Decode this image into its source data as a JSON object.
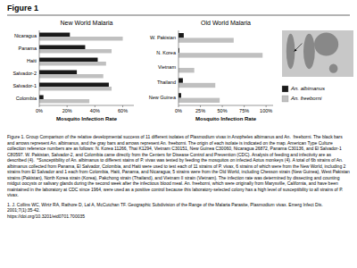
{
  "chart_data": [
    {
      "type": "bar",
      "orientation": "horizontal",
      "title": "New World Malaria",
      "x_label": "Mosquito Infection Rate",
      "categories": [
        "Nicaragua",
        "Panama",
        "Haiti",
        "Salvador-2",
        "Salvador-1",
        "Colombia"
      ],
      "series": [
        {
          "name": "An. albimanus",
          "color": "#1a1a1a",
          "values": [
            22,
            33,
            42,
            27,
            50,
            3
          ]
        },
        {
          "name": "An. freeborni",
          "color": "#c0c0c0",
          "values": [
            60,
            52,
            48,
            46,
            52,
            36
          ]
        }
      ],
      "xlim": [
        0,
        68
      ],
      "xticks": [
        {
          "value": 0,
          "label": "0%"
        },
        {
          "value": 20,
          "label": "20%"
        },
        {
          "value": 40,
          "label": "40%"
        },
        {
          "value": 60,
          "label": "60%"
        }
      ],
      "legend": "right",
      "annotations": [
        "Figure 1",
        "Figure 1. Group Comparison of the relative developmental success of 11 different isolates of Plasmodium vivax in Anopheles albimanus and An.  freeborni. The black bars and arrows represent An. albimanus, and the gray bars and arrows represent An. freeborni. The origin of each isolate is indicated on the map. American Type Culture collection reference numbers are as follows: N. Korea 11266, Thai K1294, Vietnam C30151, New Guinea C30060, Nicaragua 26872, Panama C30136, and El Salvador-1 C80597. W. Pakistan, Salvador-2, and Colombia came directly from the Centers for Disease Control and Prevention (CDC). Analysis of feeding and infectivity are as described (4).  *Susceptibility of An. albimanus to different stains of P. vivax was tested by feeding the mosquitos on infected Aotus monkeys (4). A total of 6b strains of An. albimanus collected from Panama, El Salvador, Colombia, and Haiti were used to test each of 11 strains of P. vivax, 6 strains of which were from the New World, including 2 strains from El Salvador and 1 each from Colombia, Haiti, Panama, and Nicaragua; 5 strains were from the Old World, including Chesson strain (New Guinea), West Pakistan strains (Pakistan), North Korea strain (Korea), Pakchong strain (Thailand), and Vietnam II strain (Vietnam). The infection rate was determined by dissecting and counting midgut oocysts or salivary glands during the second week after the infectious blood meal. An. freeborni, which were originally from Marysville, California, and have been maintained in the laboratory at CDC since 1964, were used as a positive control because this laboratory-selected colony has a high level of susceptibility to all strains of P. vivax.",
        "1. J. Collins WC, Wirtz RA, Rathore D, Lal A, McCutchan TF. Geographic Subdivision of the Range of the Malaria Parasite, Plasmodium vivax. Emerg Infect Dis. 2001;7(1):35-42.",
        "https://doi.org/10.3201/eid0701.700035"
      ]
    },
    {
      "type": "bar",
      "orientation": "horizontal",
      "title": "Old World Malaria",
      "x_label": "Mosquito Infection Rate",
      "categories": [
        "W. Pakistan",
        "N. Korea",
        "Vietnam",
        "Thailand",
        "New Guinea"
      ],
      "series": [
        {
          "color": "#1a1a1a",
          "values": [
            6,
            1,
            0,
            5,
            3
          ]
        },
        {
          "color": "#c0c0c0",
          "values": [
            63,
            96,
            18,
            42,
            47
          ]
        }
      ],
      "xlim": [
        0,
        108
      ],
      "xticks": [
        {
          "value": 0,
          "label": "0%"
        },
        {
          "value": 25,
          "label": "25%"
        },
        {
          "value": 50,
          "label": "50%"
        },
        {
          "value": 75,
          "label": "75%"
        },
        {
          "value": 100,
          "label": "100%"
        }
      ]
    }
  ]
}
